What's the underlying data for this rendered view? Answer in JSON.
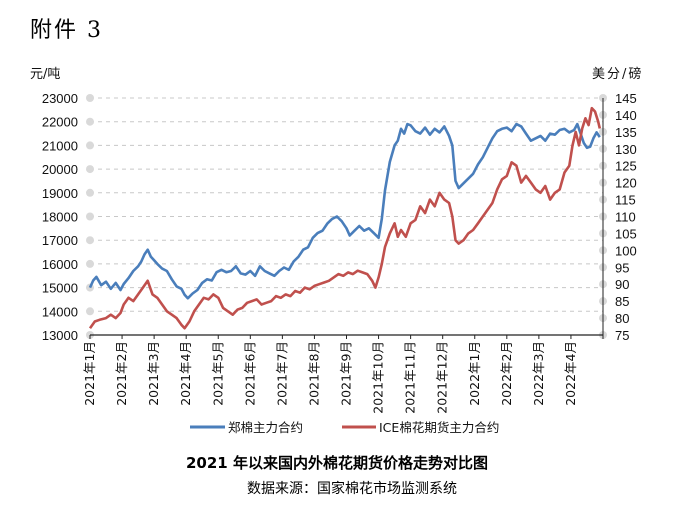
{
  "attachment_label": "附件 3",
  "chart_data": {
    "type": "line",
    "title": "2021 年以来国内外棉花期货价格走势对比图",
    "source": "数据来源：国家棉花市场监测系统",
    "left_unit": "元/吨",
    "right_unit": "美分/磅",
    "left_ylim": [
      13000,
      23000
    ],
    "left_ticks": [
      13000,
      14000,
      15000,
      16000,
      17000,
      18000,
      19000,
      20000,
      21000,
      22000,
      23000
    ],
    "right_ylim": [
      75,
      145
    ],
    "right_ticks": [
      75,
      80,
      85,
      90,
      95,
      100,
      105,
      110,
      115,
      120,
      125,
      130,
      135,
      140,
      145
    ],
    "x_labels": [
      "2021年1月",
      "2021年2月",
      "2021年3月",
      "2021年4月",
      "2021年5月",
      "2021年6月",
      "2021年7月",
      "2021年8月",
      "2021年9月",
      "2021年10月",
      "2021年11月",
      "2021年12月",
      "2022年1月",
      "2022年2月",
      "2022年3月",
      "2022年4月"
    ],
    "grid": "horizontal dashed",
    "legend_position": "bottom",
    "series": [
      {
        "name": "郑棉主力合约",
        "axis": "left",
        "color": "#4a7ebb",
        "points": [
          [
            0,
            15000
          ],
          [
            0.1,
            15300
          ],
          [
            0.2,
            15450
          ],
          [
            0.35,
            15100
          ],
          [
            0.5,
            15250
          ],
          [
            0.65,
            14950
          ],
          [
            0.8,
            15200
          ],
          [
            0.95,
            14900
          ],
          [
            1.05,
            15150
          ],
          [
            1.2,
            15400
          ],
          [
            1.35,
            15700
          ],
          [
            1.5,
            15900
          ],
          [
            1.6,
            16100
          ],
          [
            1.7,
            16400
          ],
          [
            1.8,
            16600
          ],
          [
            1.9,
            16300
          ],
          [
            2.0,
            16150
          ],
          [
            2.1,
            16000
          ],
          [
            2.25,
            15800
          ],
          [
            2.4,
            15700
          ],
          [
            2.55,
            15350
          ],
          [
            2.7,
            15050
          ],
          [
            2.85,
            14950
          ],
          [
            2.95,
            14700
          ],
          [
            3.05,
            14550
          ],
          [
            3.2,
            14750
          ],
          [
            3.35,
            14900
          ],
          [
            3.5,
            15200
          ],
          [
            3.65,
            15350
          ],
          [
            3.8,
            15300
          ],
          [
            3.95,
            15650
          ],
          [
            4.1,
            15750
          ],
          [
            4.25,
            15650
          ],
          [
            4.4,
            15700
          ],
          [
            4.55,
            15900
          ],
          [
            4.7,
            15600
          ],
          [
            4.85,
            15550
          ],
          [
            5.0,
            15700
          ],
          [
            5.15,
            15500
          ],
          [
            5.3,
            15900
          ],
          [
            5.45,
            15700
          ],
          [
            5.6,
            15600
          ],
          [
            5.75,
            15500
          ],
          [
            5.9,
            15700
          ],
          [
            6.05,
            15850
          ],
          [
            6.2,
            15750
          ],
          [
            6.35,
            16100
          ],
          [
            6.5,
            16300
          ],
          [
            6.65,
            16600
          ],
          [
            6.8,
            16700
          ],
          [
            6.95,
            17100
          ],
          [
            7.1,
            17300
          ],
          [
            7.25,
            17400
          ],
          [
            7.4,
            17700
          ],
          [
            7.55,
            17900
          ],
          [
            7.7,
            18000
          ],
          [
            7.85,
            17800
          ],
          [
            8.0,
            17500
          ],
          [
            8.1,
            17200
          ],
          [
            8.25,
            17400
          ],
          [
            8.4,
            17600
          ],
          [
            8.55,
            17400
          ],
          [
            8.7,
            17500
          ],
          [
            8.85,
            17300
          ],
          [
            9.0,
            17100
          ],
          [
            9.1,
            17900
          ],
          [
            9.2,
            19100
          ],
          [
            9.35,
            20300
          ],
          [
            9.5,
            21000
          ],
          [
            9.6,
            21200
          ],
          [
            9.7,
            21700
          ],
          [
            9.8,
            21500
          ],
          [
            9.9,
            21900
          ],
          [
            10.0,
            21850
          ],
          [
            10.15,
            21600
          ],
          [
            10.3,
            21500
          ],
          [
            10.45,
            21750
          ],
          [
            10.6,
            21450
          ],
          [
            10.75,
            21700
          ],
          [
            10.9,
            21550
          ],
          [
            11.05,
            21800
          ],
          [
            11.2,
            21400
          ],
          [
            11.3,
            21000
          ],
          [
            11.4,
            19500
          ],
          [
            11.5,
            19200
          ],
          [
            11.65,
            19400
          ],
          [
            11.8,
            19600
          ],
          [
            11.95,
            19800
          ],
          [
            12.1,
            20200
          ],
          [
            12.25,
            20500
          ],
          [
            12.4,
            20900
          ],
          [
            12.55,
            21300
          ],
          [
            12.7,
            21600
          ],
          [
            12.85,
            21700
          ],
          [
            13.0,
            21750
          ],
          [
            13.15,
            21600
          ],
          [
            13.3,
            21900
          ],
          [
            13.45,
            21800
          ],
          [
            13.6,
            21500
          ],
          [
            13.75,
            21200
          ],
          [
            13.9,
            21300
          ],
          [
            14.05,
            21400
          ],
          [
            14.2,
            21200
          ],
          [
            14.35,
            21500
          ],
          [
            14.5,
            21450
          ],
          [
            14.65,
            21650
          ],
          [
            14.8,
            21700
          ],
          [
            14.95,
            21550
          ],
          [
            15.1,
            21650
          ],
          [
            15.2,
            21900
          ],
          [
            15.3,
            21500
          ],
          [
            15.4,
            21100
          ],
          [
            15.5,
            20900
          ],
          [
            15.6,
            20950
          ],
          [
            15.7,
            21300
          ],
          [
            15.8,
            21550
          ],
          [
            15.9,
            21350
          ]
        ]
      },
      {
        "name": "ICE棉花期货主力合约",
        "axis": "right",
        "color": "#c0504d",
        "points": [
          [
            0,
            77
          ],
          [
            0.15,
            79
          ],
          [
            0.3,
            79.5
          ],
          [
            0.5,
            80
          ],
          [
            0.65,
            81
          ],
          [
            0.8,
            80
          ],
          [
            0.95,
            81.5
          ],
          [
            1.05,
            84
          ],
          [
            1.2,
            86
          ],
          [
            1.35,
            85
          ],
          [
            1.5,
            87
          ],
          [
            1.65,
            89
          ],
          [
            1.8,
            91
          ],
          [
            1.95,
            87
          ],
          [
            2.1,
            86
          ],
          [
            2.25,
            84
          ],
          [
            2.4,
            82
          ],
          [
            2.55,
            81
          ],
          [
            2.7,
            80
          ],
          [
            2.85,
            78
          ],
          [
            2.95,
            77
          ],
          [
            3.1,
            79
          ],
          [
            3.25,
            82
          ],
          [
            3.4,
            84
          ],
          [
            3.55,
            86
          ],
          [
            3.7,
            85.5
          ],
          [
            3.85,
            87
          ],
          [
            4.0,
            86
          ],
          [
            4.15,
            83
          ],
          [
            4.3,
            82
          ],
          [
            4.45,
            81
          ],
          [
            4.6,
            82.5
          ],
          [
            4.75,
            83
          ],
          [
            4.9,
            84.5
          ],
          [
            5.05,
            85
          ],
          [
            5.2,
            85.5
          ],
          [
            5.35,
            84
          ],
          [
            5.5,
            84.5
          ],
          [
            5.65,
            85
          ],
          [
            5.8,
            86.5
          ],
          [
            5.95,
            86
          ],
          [
            6.1,
            87
          ],
          [
            6.25,
            86.5
          ],
          [
            6.4,
            88
          ],
          [
            6.55,
            87.5
          ],
          [
            6.7,
            89
          ],
          [
            6.85,
            88.5
          ],
          [
            7.0,
            89.5
          ],
          [
            7.15,
            90
          ],
          [
            7.3,
            90.5
          ],
          [
            7.45,
            91
          ],
          [
            7.6,
            92
          ],
          [
            7.75,
            93
          ],
          [
            7.9,
            92.5
          ],
          [
            8.05,
            93.5
          ],
          [
            8.2,
            93
          ],
          [
            8.35,
            94
          ],
          [
            8.5,
            93.5
          ],
          [
            8.65,
            93
          ],
          [
            8.8,
            91
          ],
          [
            8.9,
            89
          ],
          [
            9.0,
            92
          ],
          [
            9.1,
            96
          ],
          [
            9.2,
            101
          ],
          [
            9.35,
            105
          ],
          [
            9.5,
            108
          ],
          [
            9.6,
            104
          ],
          [
            9.7,
            106
          ],
          [
            9.85,
            104
          ],
          [
            10.0,
            108
          ],
          [
            10.15,
            109
          ],
          [
            10.3,
            113
          ],
          [
            10.45,
            111
          ],
          [
            10.6,
            115
          ],
          [
            10.75,
            113
          ],
          [
            10.9,
            117
          ],
          [
            11.05,
            115
          ],
          [
            11.2,
            114
          ],
          [
            11.3,
            110
          ],
          [
            11.4,
            103
          ],
          [
            11.5,
            102
          ],
          [
            11.65,
            103
          ],
          [
            11.8,
            105
          ],
          [
            11.95,
            106
          ],
          [
            12.1,
            108
          ],
          [
            12.25,
            110
          ],
          [
            12.4,
            112
          ],
          [
            12.55,
            114
          ],
          [
            12.7,
            118
          ],
          [
            12.85,
            121
          ],
          [
            13.0,
            122
          ],
          [
            13.15,
            126
          ],
          [
            13.3,
            125
          ],
          [
            13.45,
            120
          ],
          [
            13.6,
            122
          ],
          [
            13.75,
            120
          ],
          [
            13.9,
            118
          ],
          [
            14.05,
            117
          ],
          [
            14.2,
            119
          ],
          [
            14.35,
            115
          ],
          [
            14.5,
            117
          ],
          [
            14.65,
            118
          ],
          [
            14.8,
            123
          ],
          [
            14.95,
            125
          ],
          [
            15.05,
            131
          ],
          [
            15.15,
            135
          ],
          [
            15.25,
            131
          ],
          [
            15.35,
            136
          ],
          [
            15.45,
            139
          ],
          [
            15.55,
            137
          ],
          [
            15.65,
            142
          ],
          [
            15.75,
            141
          ],
          [
            15.85,
            138
          ],
          [
            15.9,
            136
          ]
        ]
      }
    ]
  }
}
